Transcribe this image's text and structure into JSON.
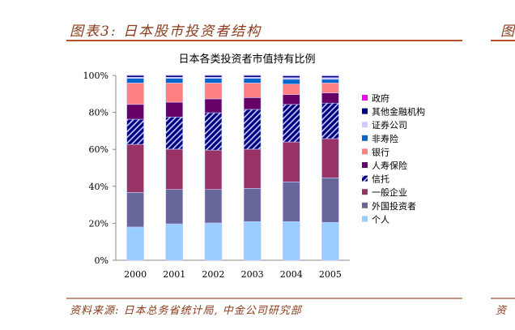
{
  "header": {
    "figure_title": "图表3: 日本股市投资者结构",
    "clipped_next_title": "图"
  },
  "footer": {
    "source": "资料来源: 日本总务省统计局, 中金公司研究部",
    "clipped_next_source": "资"
  },
  "chart_data": {
    "type": "bar",
    "stacked": true,
    "title": "日本各类投资者市值持有比例",
    "categories": [
      "2000",
      "2001",
      "2002",
      "2003",
      "2004",
      "2005"
    ],
    "ylim": [
      0,
      100
    ],
    "yticks": [
      "0%",
      "20%",
      "40%",
      "60%",
      "80%",
      "100%"
    ],
    "grid": false,
    "legend_placement": "right",
    "series": [
      {
        "name": "个人",
        "color": "#99ccff",
        "values": [
          18.0,
          19.7,
          20.2,
          20.9,
          20.9,
          20.5
        ]
      },
      {
        "name": "外国投资者",
        "color": "#666699",
        "values": [
          18.7,
          18.6,
          18.1,
          18.0,
          21.5,
          24.1
        ]
      },
      {
        "name": "一般企业",
        "color": "#993366",
        "values": [
          26.0,
          21.8,
          21.3,
          21.2,
          21.6,
          21.2
        ]
      },
      {
        "name": "信托",
        "color": "#000080",
        "pattern": "hatch",
        "values": [
          13.6,
          17.4,
          20.2,
          21.5,
          20.3,
          19.2
        ]
      },
      {
        "name": "人寿保险",
        "color": "#660066",
        "values": [
          8.0,
          8.0,
          7.5,
          6.4,
          5.3,
          5.5
        ]
      },
      {
        "name": "银行",
        "color": "#ff8080",
        "values": [
          11.6,
          10.4,
          8.6,
          7.9,
          5.7,
          5.4
        ]
      },
      {
        "name": "非寿险",
        "color": "#0066cc",
        "values": [
          2.5,
          2.5,
          2.5,
          2.5,
          2.6,
          2.0
        ]
      },
      {
        "name": "证券公司",
        "color": "#ccccff",
        "values": [
          0.6,
          0.6,
          0.6,
          0.6,
          0.9,
          0.9
        ]
      },
      {
        "name": "其他金融机构",
        "color": "#000080",
        "values": [
          1.0,
          1.0,
          1.0,
          1.0,
          1.0,
          1.0
        ]
      },
      {
        "name": "政府",
        "color": "#ff00ff",
        "values": [
          0.2,
          0.2,
          0.2,
          0.2,
          0.2,
          0.2
        ]
      }
    ]
  }
}
